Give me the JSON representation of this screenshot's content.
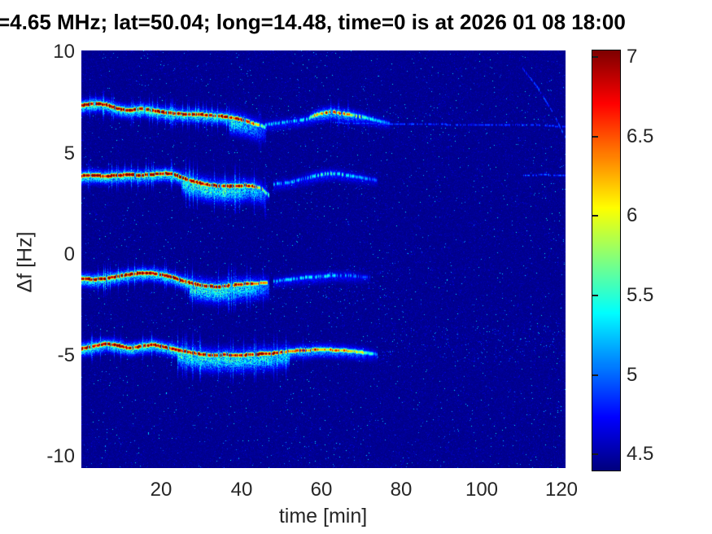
{
  "title": "=4.65 MHz;  lat=50.04; long=14.48, time=0 is at 2026 01 08 18:00",
  "axes": {
    "xlabel": "time [min]",
    "ylabel": "Δf [Hz]",
    "xticks": [
      "20",
      "40",
      "60",
      "80",
      "100",
      "120"
    ],
    "yticks": [
      "10",
      "5",
      "0",
      "-5",
      "-10"
    ]
  },
  "colorbar_labels": [
    "7",
    "6.5",
    "6",
    "5.5",
    "5",
    "4.5"
  ],
  "colors": {
    "background": "#ffffff",
    "title_text": "#000000",
    "tick_text": "#262626",
    "plot_background_blue": "#0000a8",
    "trace_core_red": "#800000"
  },
  "chart_data": {
    "type": "heatmap",
    "title": "=4.65 MHz;  lat=50.04; long=14.48, time=0 is at 2026 01 08 18:00",
    "xlabel": "time [min]",
    "ylabel": "Δf [Hz]",
    "xlim": [
      0,
      121
    ],
    "ylim": [
      -10.54,
      10.1
    ],
    "xticks": [
      20,
      40,
      60,
      80,
      100,
      120
    ],
    "yticks": [
      10,
      5,
      0,
      -5,
      -10
    ],
    "grid": false,
    "noise_floor": 4.42,
    "colorbar": {
      "colormap": "jet",
      "min": 4.4,
      "max": 7.04,
      "ticks": [
        7,
        6.5,
        6,
        5.5,
        5,
        4.5
      ],
      "position": "right"
    },
    "traces": [
      {
        "name": "doppler-band-+7Hz-main",
        "striation": [
          1.5,
          46
        ],
        "fringe": [
          37,
          46.5
        ],
        "points": [
          [
            0,
            7.4,
            7.35
          ],
          [
            3,
            7.5,
            7.35
          ],
          [
            6,
            7.45,
            7.3
          ],
          [
            9,
            7.25,
            7.3
          ],
          [
            12,
            7.15,
            7.35
          ],
          [
            15,
            7.25,
            7.3
          ],
          [
            18,
            7.15,
            7.3
          ],
          [
            21,
            7.05,
            7.3
          ],
          [
            24,
            7.0,
            7.25
          ],
          [
            27,
            6.95,
            7.3
          ],
          [
            30,
            6.95,
            7.25
          ],
          [
            33,
            6.9,
            7.2
          ],
          [
            36,
            6.85,
            7.1
          ],
          [
            39,
            6.75,
            7.0
          ],
          [
            41,
            6.65,
            6.8
          ],
          [
            43,
            6.5,
            6.4
          ],
          [
            45,
            6.4,
            5.9
          ],
          [
            46,
            6.3,
            5.4
          ]
        ]
      },
      {
        "name": "doppler-band-+7Hz-faint-tail",
        "patchy": true,
        "points": [
          [
            46,
            6.45,
            5.35
          ],
          [
            50,
            6.55,
            5.3
          ],
          [
            54,
            6.65,
            5.4
          ],
          [
            57,
            6.75,
            5.45
          ]
        ]
      },
      {
        "name": "doppler-band-+7Hz-late-bump",
        "striation": [
          58,
          72
        ],
        "points": [
          [
            57,
            6.8,
            5.7
          ],
          [
            59,
            6.95,
            6.3
          ],
          [
            61,
            7.05,
            6.7
          ],
          [
            63,
            7.08,
            6.6
          ],
          [
            65,
            7.0,
            6.45
          ],
          [
            67,
            6.95,
            6.2
          ],
          [
            69,
            6.88,
            6.0
          ],
          [
            71,
            6.8,
            5.7
          ],
          [
            73,
            6.7,
            5.4
          ],
          [
            75,
            6.6,
            5.2
          ],
          [
            77,
            6.52,
            5.0
          ]
        ]
      },
      {
        "name": "doppler-band-+6.5Hz-thin-line",
        "thin": true,
        "points": [
          [
            63,
            6.55,
            5.0
          ],
          [
            80,
            6.47,
            4.95
          ],
          [
            100,
            6.45,
            4.95
          ],
          [
            115,
            6.42,
            4.9
          ],
          [
            122,
            6.33,
            4.95
          ]
        ]
      },
      {
        "name": "doppler-band-+4Hz-main",
        "striation": [
          1.5,
          47
        ],
        "fringe": [
          25,
          46
        ],
        "points": [
          [
            0,
            3.92,
            7.3
          ],
          [
            3,
            3.96,
            7.3
          ],
          [
            6,
            3.9,
            7.25
          ],
          [
            9,
            3.95,
            7.3
          ],
          [
            12,
            3.98,
            7.3
          ],
          [
            15,
            3.95,
            7.25
          ],
          [
            18,
            4.0,
            7.3
          ],
          [
            21,
            4.05,
            7.25
          ],
          [
            23,
            4.0,
            7.3
          ],
          [
            25,
            3.85,
            7.25
          ],
          [
            27,
            3.7,
            7.2
          ],
          [
            29,
            3.6,
            7.3
          ],
          [
            31,
            3.5,
            7.25
          ],
          [
            33,
            3.45,
            7.3
          ],
          [
            35,
            3.42,
            7.25
          ],
          [
            37,
            3.4,
            7.3
          ],
          [
            39,
            3.42,
            7.2
          ],
          [
            41,
            3.45,
            7.1
          ],
          [
            43,
            3.4,
            6.9
          ],
          [
            45,
            3.3,
            6.3
          ],
          [
            46,
            3.1,
            5.7
          ],
          [
            47,
            2.95,
            5.3
          ]
        ]
      },
      {
        "name": "doppler-band-+4Hz-faint-tail",
        "patchy": true,
        "points": [
          [
            48,
            3.5,
            5.2
          ],
          [
            52,
            3.6,
            5.25
          ],
          [
            56,
            3.8,
            5.3
          ],
          [
            59,
            3.95,
            5.5
          ],
          [
            62,
            4.05,
            5.55
          ],
          [
            65,
            4.0,
            5.45
          ],
          [
            68,
            3.9,
            5.25
          ],
          [
            71,
            3.8,
            5.1
          ],
          [
            74,
            3.7,
            4.95
          ]
        ]
      },
      {
        "name": "doppler-band-+4Hz-thin-line",
        "thin": true,
        "points": [
          [
            110,
            3.95,
            4.95
          ],
          [
            116,
            3.97,
            5.0
          ],
          [
            122,
            3.93,
            4.95
          ]
        ]
      },
      {
        "name": "doppler-band--1Hz-main",
        "striation": [
          1.5,
          47
        ],
        "fringe": [
          27,
          47
        ],
        "points": [
          [
            0,
            -1.15,
            7.3
          ],
          [
            3,
            -1.2,
            7.3
          ],
          [
            6,
            -1.15,
            7.25
          ],
          [
            9,
            -1.05,
            7.3
          ],
          [
            12,
            -0.95,
            7.3
          ],
          [
            15,
            -0.88,
            7.3
          ],
          [
            18,
            -0.9,
            7.25
          ],
          [
            21,
            -1.0,
            7.3
          ],
          [
            23,
            -1.1,
            7.25
          ],
          [
            25,
            -1.25,
            7.3
          ],
          [
            27,
            -1.35,
            7.25
          ],
          [
            29,
            -1.45,
            7.3
          ],
          [
            31,
            -1.52,
            7.25
          ],
          [
            33,
            -1.55,
            7.3
          ],
          [
            35,
            -1.55,
            7.25
          ],
          [
            37,
            -1.5,
            7.2
          ],
          [
            39,
            -1.45,
            7.1
          ],
          [
            41,
            -1.42,
            7.0
          ],
          [
            43,
            -1.4,
            6.8
          ],
          [
            45,
            -1.38,
            6.4
          ],
          [
            47,
            -1.35,
            5.8
          ]
        ]
      },
      {
        "name": "doppler-band--1Hz-faint-tail",
        "patchy": true,
        "points": [
          [
            48,
            -1.3,
            5.2
          ],
          [
            52,
            -1.2,
            5.25
          ],
          [
            56,
            -1.1,
            5.35
          ],
          [
            60,
            -1.05,
            5.4
          ],
          [
            63,
            -1.0,
            5.3
          ],
          [
            66,
            -1.0,
            5.2
          ],
          [
            69,
            -1.05,
            5.05
          ],
          [
            72,
            -1.1,
            4.9
          ]
        ]
      },
      {
        "name": "doppler-band--4.5Hz-main",
        "striation": [
          1.5,
          58
        ],
        "fringe": [
          24,
          52
        ],
        "points": [
          [
            0,
            -4.62,
            7.3
          ],
          [
            3,
            -4.5,
            7.3
          ],
          [
            6,
            -4.38,
            7.3
          ],
          [
            9,
            -4.45,
            7.3
          ],
          [
            12,
            -4.6,
            7.25
          ],
          [
            15,
            -4.5,
            7.3
          ],
          [
            18,
            -4.42,
            7.3
          ],
          [
            21,
            -4.55,
            7.25
          ],
          [
            24,
            -4.68,
            7.3
          ],
          [
            27,
            -4.8,
            7.25
          ],
          [
            30,
            -4.9,
            7.2
          ],
          [
            33,
            -4.95,
            7.25
          ],
          [
            36,
            -4.92,
            7.2
          ],
          [
            39,
            -4.95,
            7.15
          ],
          [
            42,
            -4.92,
            7.1
          ],
          [
            45,
            -4.88,
            7.15
          ],
          [
            48,
            -4.85,
            7.0
          ],
          [
            50,
            -4.8,
            6.9
          ],
          [
            52,
            -4.75,
            6.7
          ],
          [
            54,
            -4.72,
            6.6
          ],
          [
            56,
            -4.7,
            6.7
          ],
          [
            58,
            -4.68,
            6.5
          ],
          [
            60,
            -4.65,
            6.6
          ],
          [
            62,
            -4.68,
            6.4
          ],
          [
            64,
            -4.7,
            6.5
          ],
          [
            66,
            -4.72,
            6.3
          ],
          [
            68,
            -4.75,
            6.1
          ],
          [
            70,
            -4.8,
            5.9
          ],
          [
            72,
            -4.85,
            5.5
          ],
          [
            74,
            -4.9,
            5.1
          ]
        ]
      },
      {
        "name": "faint-diagonal-upper-right",
        "thin": true,
        "points": [
          [
            110,
            9.3,
            4.9
          ],
          [
            114,
            8.3,
            4.92
          ],
          [
            118,
            7.0,
            4.9
          ],
          [
            122,
            5.4,
            4.95
          ]
        ]
      }
    ],
    "speckle_bands": [
      {
        "t": [
          75,
          122
        ],
        "f": [
          -5.3,
          -3.5
        ],
        "density": 0.03,
        "v": [
          4.55,
          5.3
        ]
      },
      {
        "t": [
          80,
          122
        ],
        "f": [
          6.1,
          7.0
        ],
        "density": 0.012,
        "v": [
          4.55,
          5.1
        ]
      },
      {
        "t": [
          48,
          78
        ],
        "f": [
          -2.4,
          -0.5
        ],
        "density": 0.018,
        "v": [
          4.55,
          5.25
        ]
      },
      {
        "t": [
          46,
          76
        ],
        "f": [
          2.7,
          4.5
        ],
        "density": 0.015,
        "v": [
          4.55,
          5.2
        ]
      },
      {
        "t": [
          45,
          80
        ],
        "f": [
          5.9,
          7.4
        ],
        "density": 0.02,
        "v": [
          4.55,
          5.25
        ]
      }
    ]
  }
}
